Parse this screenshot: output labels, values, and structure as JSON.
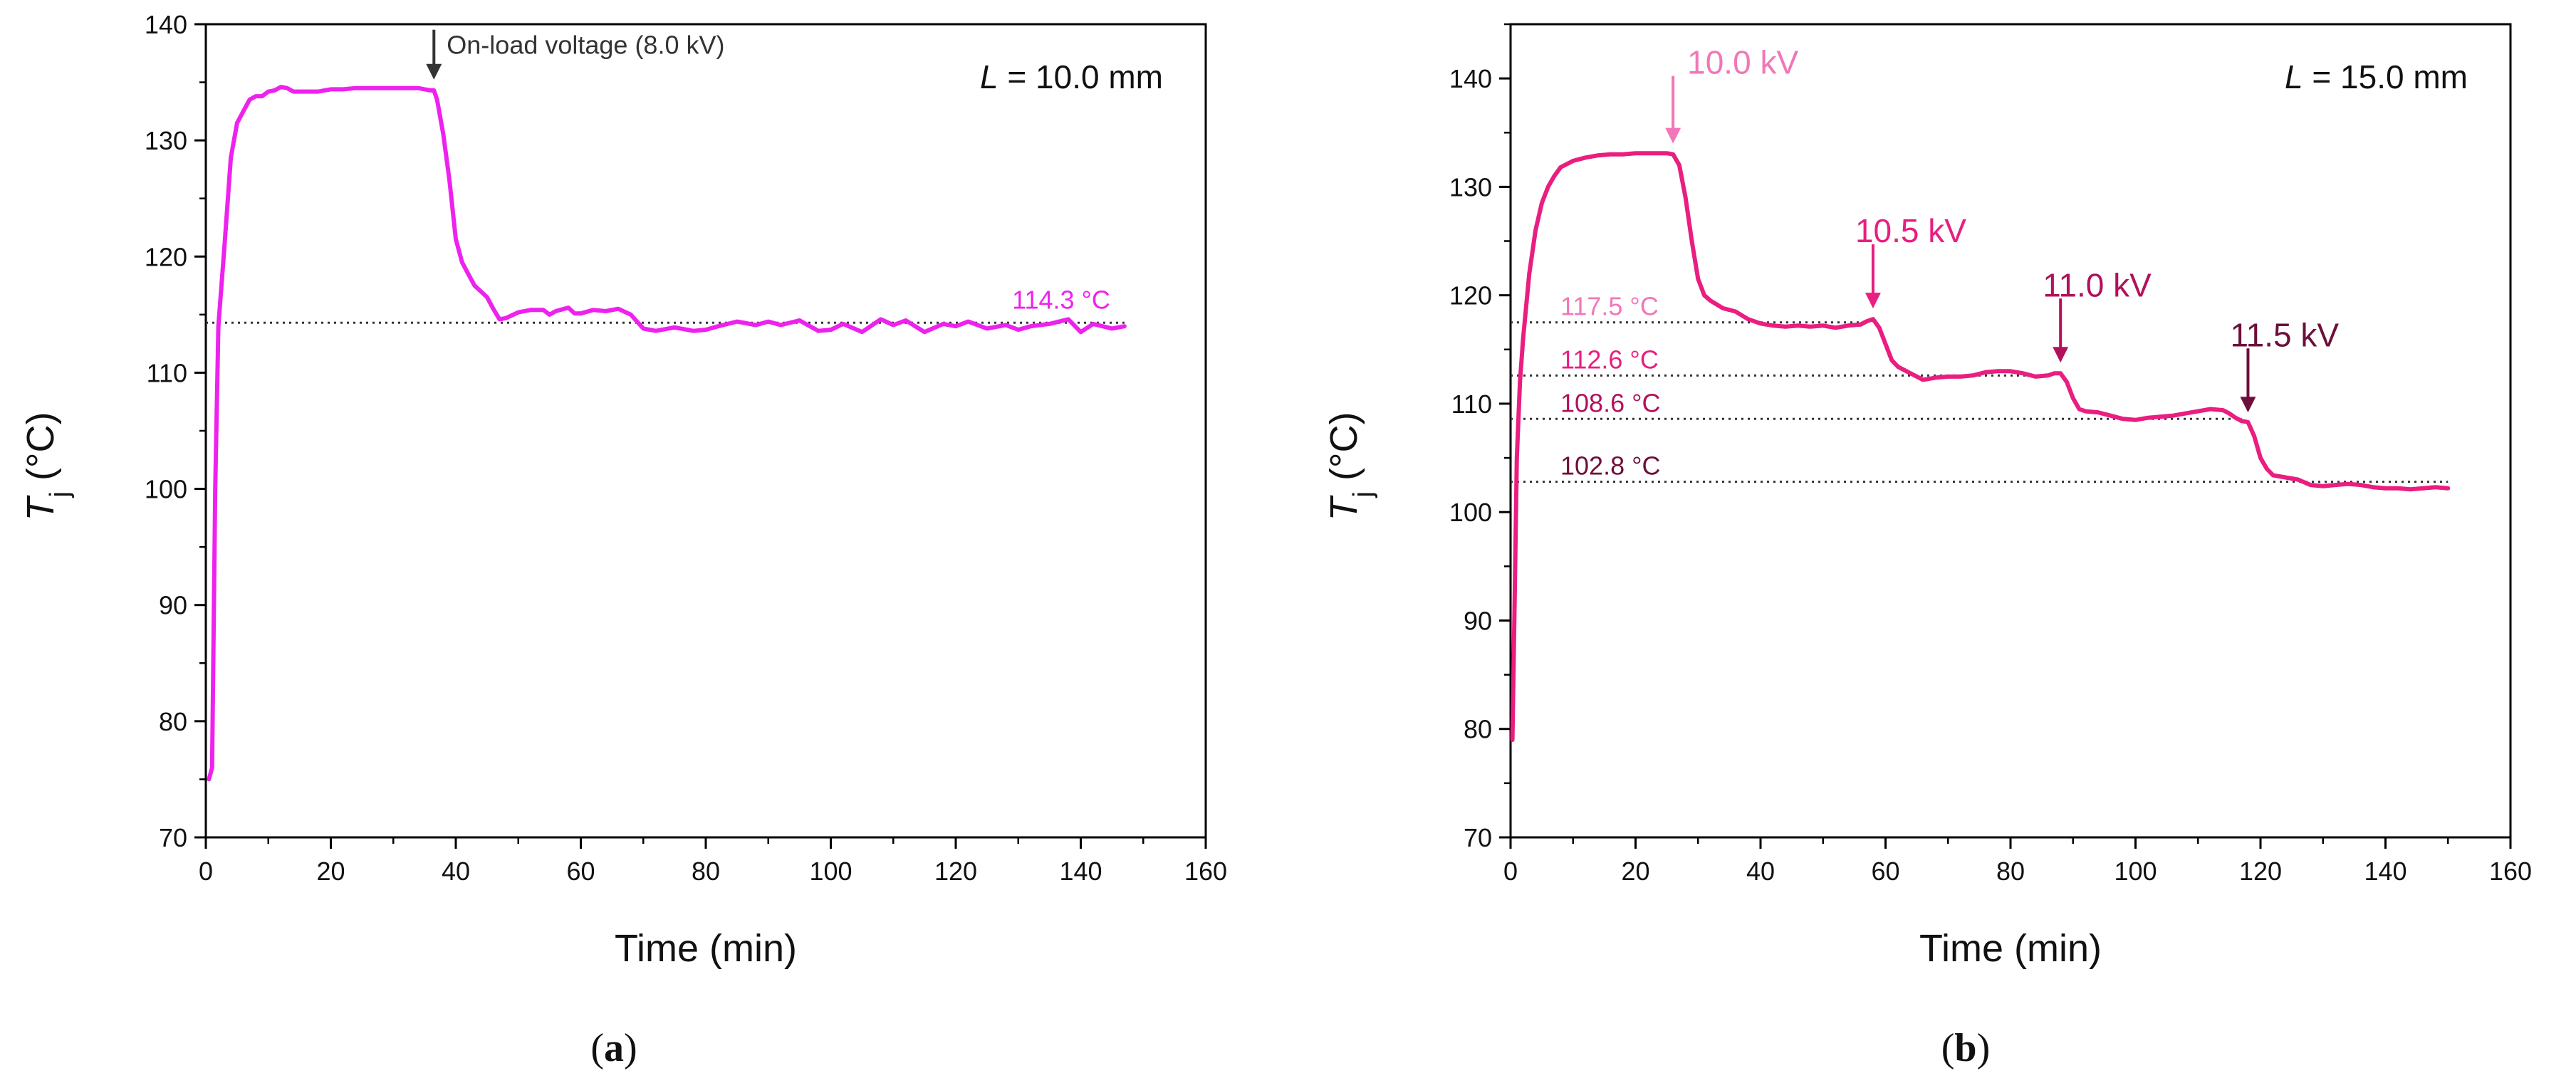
{
  "figure": {
    "panels": [
      "(a)",
      "(b)"
    ],
    "panel_label_parts": [
      {
        "open": "(",
        "letter": "a",
        "close": ")"
      },
      {
        "open": "(",
        "letter": "b",
        "close": ")"
      }
    ]
  },
  "chart_data": [
    {
      "type": "line",
      "panel": "a",
      "xlabel": "Time (min)",
      "ylabel_main": "T",
      "ylabel_sub": "j",
      "ylabel_unit": " (°C)",
      "xlim": [
        0,
        160
      ],
      "ylim": [
        70,
        140
      ],
      "xticks": [
        0,
        20,
        40,
        60,
        80,
        100,
        120,
        140,
        160
      ],
      "yticks": [
        70,
        80,
        90,
        100,
        110,
        120,
        130,
        140
      ],
      "grid": false,
      "corner_label": {
        "italic": "L",
        "text": " = 10.0 mm"
      },
      "series": [
        {
          "name": "Tj",
          "color": "#ee22ee",
          "x": [
            0.5,
            1,
            1.5,
            2,
            3,
            4,
            5,
            6,
            7,
            8,
            9,
            10,
            11,
            12,
            13,
            14,
            15,
            16,
            18,
            20,
            22,
            24,
            26,
            28,
            30,
            32,
            34,
            35,
            36,
            36.5,
            37,
            38,
            39,
            40,
            41,
            42,
            43,
            44,
            45,
            46,
            47,
            48,
            50,
            52,
            54,
            55,
            56,
            58,
            59,
            60,
            62,
            64,
            66,
            68,
            70,
            72,
            75,
            78,
            80,
            82,
            85,
            88,
            90,
            92,
            95,
            98,
            100,
            102,
            105,
            108,
            110,
            112,
            115,
            118,
            120,
            122,
            125,
            128,
            130,
            132,
            135,
            138,
            140,
            142,
            145,
            147
          ],
          "y": [
            75,
            76,
            100,
            114,
            121,
            128.5,
            131.5,
            132.5,
            133.5,
            133.8,
            133.8,
            134.2,
            134.3,
            134.6,
            134.5,
            134.2,
            134.2,
            134.2,
            134.2,
            134.4,
            134.4,
            134.5,
            134.5,
            134.5,
            134.5,
            134.5,
            134.5,
            134.4,
            134.3,
            134.3,
            133.5,
            130.5,
            126.5,
            121.5,
            119.5,
            118.5,
            117.5,
            117.0,
            116.5,
            115.5,
            114.6,
            114.7,
            115.2,
            115.4,
            115.4,
            115.0,
            115.3,
            115.6,
            115.1,
            115.1,
            115.4,
            115.3,
            115.5,
            115.0,
            113.8,
            113.6,
            113.9,
            113.6,
            113.7,
            114.0,
            114.4,
            114.1,
            114.4,
            114.1,
            114.5,
            113.6,
            113.7,
            114.2,
            113.5,
            114.6,
            114.1,
            114.5,
            113.5,
            114.2,
            114.0,
            114.4,
            113.8,
            114.1,
            113.7,
            114.0,
            114.2,
            114.6,
            113.5,
            114.2,
            113.8,
            114.0
          ]
        }
      ],
      "reference_lines": [
        {
          "y": 114.3,
          "from_x": 0,
          "to_x": 147,
          "label": "114.3 °C",
          "color": "#ee22ee"
        }
      ],
      "annotations": [
        {
          "text": "On-load voltage (8.0 kV)",
          "x": 36.5,
          "y": 134.5,
          "color": "#333333",
          "arrow": true
        }
      ]
    },
    {
      "type": "line",
      "panel": "b",
      "xlabel": "Time (min)",
      "ylabel_main": "T",
      "ylabel_sub": "j",
      "ylabel_unit": " (°C)",
      "xlim": [
        0,
        160
      ],
      "ylim": [
        70,
        145
      ],
      "xticks": [
        0,
        20,
        40,
        60,
        80,
        100,
        120,
        140,
        160
      ],
      "yticks": [
        70,
        80,
        90,
        100,
        110,
        120,
        130,
        140
      ],
      "grid": false,
      "corner_label": {
        "italic": "L",
        "text": " = 15.0 mm"
      },
      "series": [
        {
          "name": "Tj",
          "color": "#e91e80",
          "x": [
            0.3,
            0.6,
            1,
            1.5,
            2,
            3,
            4,
            5,
            6,
            7,
            8,
            10,
            12,
            14,
            16,
            18,
            20,
            22,
            24,
            25,
            26,
            27,
            28,
            29,
            30,
            31,
            32,
            34,
            36,
            38,
            40,
            42,
            44,
            46,
            48,
            50,
            52,
            54,
            56,
            57,
            58,
            59,
            60,
            61,
            62,
            64,
            66,
            68,
            70,
            72,
            74,
            76,
            78,
            80,
            82,
            84,
            86,
            87,
            88,
            89,
            90,
            91,
            92,
            94,
            96,
            98,
            100,
            102,
            104,
            106,
            108,
            110,
            112,
            114,
            115,
            116,
            117,
            118,
            119,
            120,
            121,
            122,
            124,
            126,
            128,
            130,
            132,
            134,
            136,
            138,
            140,
            142,
            144,
            146,
            148,
            150
          ],
          "y": [
            79,
            90,
            105,
            112,
            116,
            122,
            126,
            128.5,
            130,
            131,
            131.8,
            132.4,
            132.7,
            132.9,
            133.0,
            133.0,
            133.1,
            133.1,
            133.1,
            133.1,
            133.0,
            132.0,
            129.0,
            125.0,
            121.5,
            120.0,
            119.5,
            118.8,
            118.5,
            117.8,
            117.4,
            117.2,
            117.1,
            117.2,
            117.1,
            117.2,
            117.0,
            117.2,
            117.3,
            117.6,
            117.8,
            117.0,
            115.5,
            114.0,
            113.4,
            112.8,
            112.2,
            112.4,
            112.5,
            112.5,
            112.6,
            112.9,
            113.0,
            113.0,
            112.8,
            112.5,
            112.6,
            112.8,
            112.8,
            112.0,
            110.5,
            109.5,
            109.3,
            109.2,
            108.9,
            108.6,
            108.5,
            108.7,
            108.8,
            108.9,
            109.1,
            109.3,
            109.5,
            109.4,
            109.1,
            108.7,
            108.4,
            108.3,
            107.0,
            105.0,
            104.0,
            103.4,
            103.2,
            103.0,
            102.5,
            102.4,
            102.5,
            102.6,
            102.5,
            102.3,
            102.2,
            102.2,
            102.1,
            102.2,
            102.3,
            102.2
          ]
        }
      ],
      "reference_lines": [
        {
          "y": 117.5,
          "from_x": 0,
          "to_x": 57,
          "label": "117.5 °C",
          "color": "#f177b7"
        },
        {
          "y": 112.6,
          "from_x": 0,
          "to_x": 87,
          "label": "112.6 °C",
          "color": "#e91e80"
        },
        {
          "y": 108.6,
          "from_x": 0,
          "to_x": 117,
          "label": "108.6 °C",
          "color": "#b3105c"
        },
        {
          "y": 102.8,
          "from_x": 0,
          "to_x": 150,
          "label": "102.8 °C",
          "color": "#6d0f3b"
        }
      ],
      "annotations": [
        {
          "text": "10.0 kV",
          "x": 26,
          "y": 133.2,
          "color": "#f177b7",
          "arrow": true
        },
        {
          "text": "10.5 kV",
          "x": 58,
          "y": 118,
          "color": "#e91e80",
          "arrow": true
        },
        {
          "text": "11.0 kV",
          "x": 88,
          "y": 113,
          "color": "#b3105c",
          "arrow": true
        },
        {
          "text": "11.5 kV",
          "x": 118,
          "y": 108.4,
          "color": "#6d0f3b",
          "arrow": true
        }
      ]
    }
  ]
}
